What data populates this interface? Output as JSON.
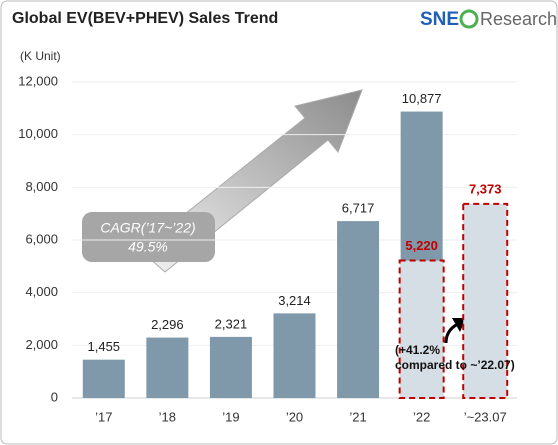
{
  "chart_data": {
    "type": "bar",
    "title": "Global EV(BEV+PHEV)  Sales Trend",
    "unit_label": "(K Unit)",
    "brand": {
      "first": "SNE",
      "second": "Research"
    },
    "categories": [
      "’17",
      "’18",
      "’19",
      "’20",
      "’21",
      "’22",
      "’~23.07"
    ],
    "values": [
      1455,
      2296,
      2321,
      3214,
      6717,
      10877,
      null
    ],
    "value_labels": [
      "1,455",
      "2,296",
      "2,321",
      "3,214",
      "6,717",
      "10,877",
      null
    ],
    "partial_values": [
      null,
      null,
      null,
      null,
      null,
      5220,
      7373
    ],
    "partial_value_labels": [
      null,
      null,
      null,
      null,
      null,
      "5,220",
      "7,373"
    ],
    "color": "#7f98aa",
    "partial_color": "#d5dee5",
    "partial_border_color": "#c00000",
    "ylim": [
      0,
      12000
    ],
    "yticks": [
      0,
      {
        "value": 2000,
        "label": "2,000"
      },
      {
        "value": 4000,
        "label": "4,000"
      },
      {
        "value": 6000,
        "label": "6,000"
      },
      {
        "value": 8000,
        "label": "8,000"
      },
      {
        "value": 10000,
        "label": "10,000"
      },
      {
        "value": 12000,
        "label": "12,000"
      }
    ],
    "grid": true,
    "annotations": {
      "cagr_label": "CAGR(’17~’22)",
      "cagr_value": "49.5%",
      "growth_line1": "(+41.2%",
      "growth_line2": "compared to ~’22.07)"
    }
  }
}
